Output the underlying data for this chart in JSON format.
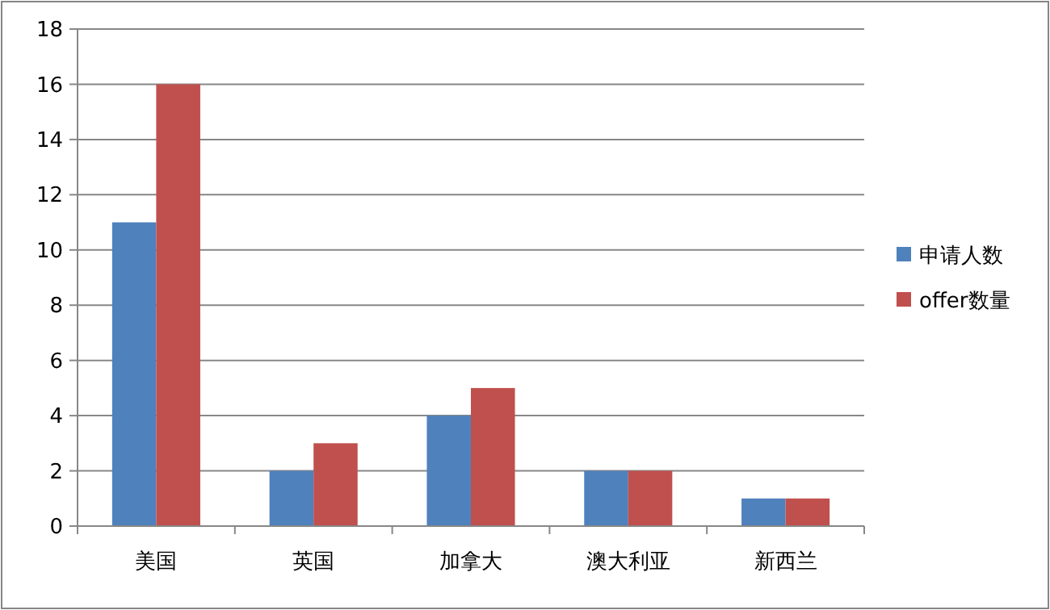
{
  "chart_data": {
    "type": "bar",
    "categories": [
      "美国",
      "英国",
      "加拿大",
      "澳大利亚",
      "新西兰"
    ],
    "series": [
      {
        "name": "申请人数",
        "color": "#4f81bd",
        "values": [
          11,
          2,
          4,
          2,
          1
        ]
      },
      {
        "name": "offer数量",
        "color": "#c0504d",
        "values": [
          16,
          3,
          5,
          2,
          1
        ]
      }
    ],
    "ylim": [
      0,
      18
    ],
    "yticks": [
      0,
      2,
      4,
      6,
      8,
      10,
      12,
      14,
      16,
      18
    ],
    "grid": "y",
    "legend": "right"
  }
}
